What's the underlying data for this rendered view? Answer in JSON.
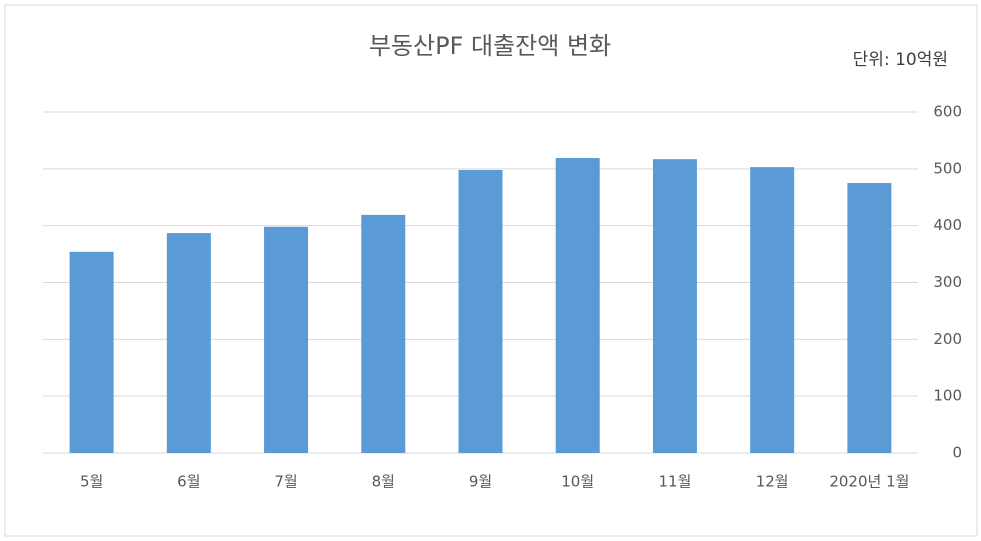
{
  "chart_data": {
    "type": "bar",
    "title": "부동산PF 대출잔액 변화",
    "unit": "단위: 10억원",
    "categories": [
      "5월",
      "6월",
      "7월",
      "8월",
      "9월",
      "10월",
      "11월",
      "12월",
      "2020년 1월"
    ],
    "values": [
      354,
      387,
      398,
      419,
      498,
      519,
      517,
      503,
      475
    ],
    "color": "#5b9bd5",
    "ylim": [
      0,
      600
    ],
    "yticks": [
      0,
      100,
      200,
      300,
      400,
      500,
      600
    ],
    "grid": true,
    "y_axis_side": "right"
  }
}
